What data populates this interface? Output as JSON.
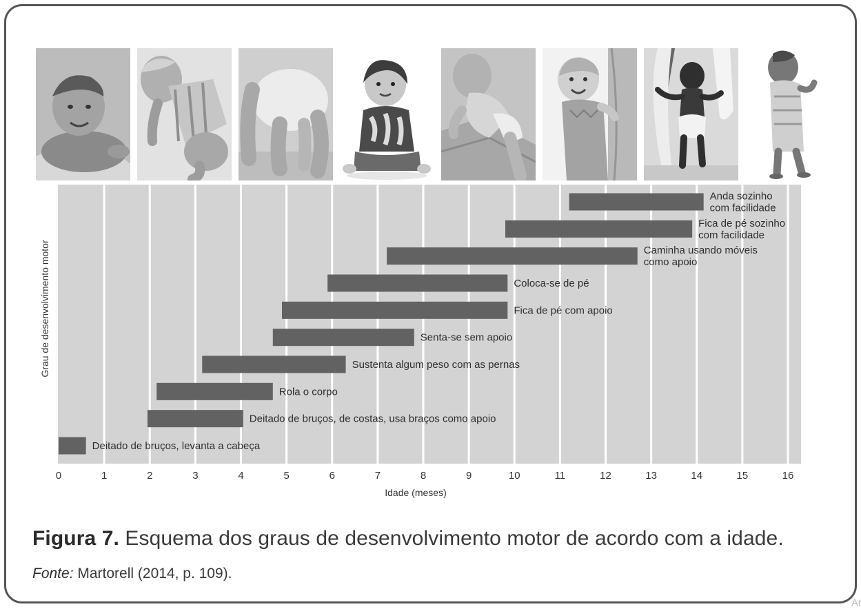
{
  "figure": {
    "caption_label": "Figura 7.",
    "caption_text": " Esquema dos graus de desenvolvimento motor de acordo com a idade.",
    "source_label": "Fonte:",
    "source_text": " Martorell (2014, p. 109).",
    "corner_text": "At"
  },
  "photos": [
    {
      "name": "baby-lifting-head-photo"
    },
    {
      "name": "baby-rolling-photo"
    },
    {
      "name": "baby-crawling-photo"
    },
    {
      "name": "baby-sitting-photo"
    },
    {
      "name": "baby-pulling-up-on-stairs-photo"
    },
    {
      "name": "baby-standing-with-support-photo"
    },
    {
      "name": "baby-walking-holding-hands-photo"
    },
    {
      "name": "baby-walking-alone-photo"
    }
  ],
  "chart_data": {
    "type": "bar",
    "orientation": "horizontal-range",
    "xlabel": "Idade (meses)",
    "ylabel": "Grau de desenvolvimento motor",
    "xlim": [
      0,
      16
    ],
    "xticks": [
      "0",
      "1",
      "2",
      "3",
      "4",
      "5",
      "6",
      "7",
      "8",
      "9",
      "10",
      "11",
      "12",
      "13",
      "14",
      "15",
      "16"
    ],
    "grid": true,
    "bar_color": "#626262",
    "background_color": "#d3d3d3",
    "bars": [
      {
        "label": [
          "Deitado de bruços, levanta a cabeça"
        ],
        "start": 0.0,
        "end": 0.6
      },
      {
        "label": [
          "Deitado de bruços, de costas, usa braços como apoio"
        ],
        "start": 1.95,
        "end": 4.05
      },
      {
        "label": [
          "Rola o corpo"
        ],
        "start": 2.15,
        "end": 4.7
      },
      {
        "label": [
          "Sustenta algum peso com as pernas"
        ],
        "start": 3.15,
        "end": 6.3
      },
      {
        "label": [
          "Senta-se sem apoio"
        ],
        "start": 4.7,
        "end": 7.8
      },
      {
        "label": [
          "Fica de pé com apoio"
        ],
        "start": 4.9,
        "end": 9.85
      },
      {
        "label": [
          "Coloca-se de pé"
        ],
        "start": 5.9,
        "end": 9.85
      },
      {
        "label": [
          "Caminha usando móveis",
          "como apoio"
        ],
        "start": 7.2,
        "end": 12.7
      },
      {
        "label": [
          "Fica de pé sozinho",
          "com facilidade"
        ],
        "start": 9.8,
        "end": 13.9
      },
      {
        "label": [
          "Anda sozinho",
          "com facilidade"
        ],
        "start": 11.2,
        "end": 14.15
      }
    ]
  }
}
